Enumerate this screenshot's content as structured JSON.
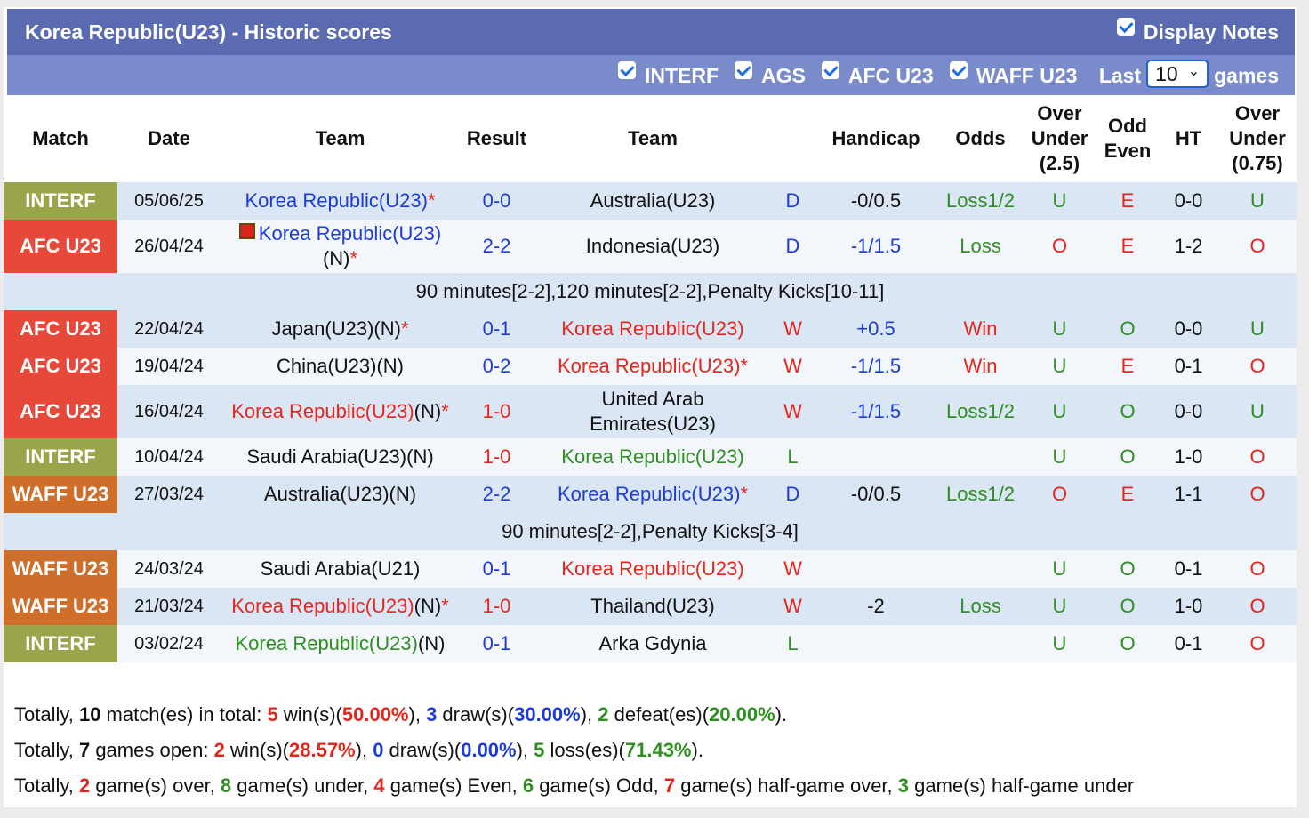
{
  "header": {
    "title": "Korea Republic(U23) - Historic scores",
    "display_notes": "Display Notes",
    "filters": [
      "INTERF",
      "AGS",
      "AFC U23",
      "WAFF U23"
    ],
    "last": "Last",
    "games_select": "10",
    "games": "games"
  },
  "palette": {
    "b": "#1d3bd6",
    "r": "#e5261c",
    "g": "#2f8f22",
    "k": "#111111"
  },
  "match_colors": {
    "INTERF": "#9aa54b",
    "AFC U23": "#e6493a",
    "WAFF U23": "#cd6e2b"
  },
  "columns": [
    [
      "Match"
    ],
    [
      "Date"
    ],
    [
      "Team"
    ],
    [
      "Result"
    ],
    [
      "Team"
    ],
    [
      ""
    ],
    [
      "Handicap"
    ],
    [
      "Odds"
    ],
    [
      "Over",
      "Under",
      "(2.5)"
    ],
    [
      "Odd",
      "Even"
    ],
    [
      "HT"
    ],
    [
      "Over",
      "Under",
      "(0.75)"
    ]
  ],
  "rows": [
    {
      "match": "INTERF",
      "date": "05/06/25",
      "home": [
        {
          "t": "Korea Republic(U23)",
          "c": "b"
        },
        {
          "t": "*",
          "c": "r"
        }
      ],
      "result": {
        "t": "0-0",
        "c": "b"
      },
      "away": [
        {
          "t": "Australia(U23)",
          "c": "k"
        }
      ],
      "wl": {
        "t": "D",
        "c": "b"
      },
      "handicap": {
        "t": "-0/0.5",
        "c": "k"
      },
      "odds": {
        "t": "Loss1/2",
        "c": "g"
      },
      "ou": {
        "t": "U",
        "c": "g"
      },
      "oe": {
        "t": "E",
        "c": "r"
      },
      "ht": {
        "t": "0-0",
        "c": "k"
      },
      "ou2": {
        "t": "U",
        "c": "g"
      }
    },
    {
      "match": "AFC U23",
      "date": "26/04/24",
      "home_icon": true,
      "home": [
        {
          "t": "Korea Republic(U23)",
          "c": "b"
        },
        {
          "t": "(N)",
          "c": "k"
        },
        {
          "t": "*",
          "c": "r"
        }
      ],
      "result": {
        "t": "2-2",
        "c": "b"
      },
      "away": [
        {
          "t": "Indonesia(U23)",
          "c": "k"
        }
      ],
      "wl": {
        "t": "D",
        "c": "b"
      },
      "handicap": {
        "t": "-1/1.5",
        "c": "b"
      },
      "odds": {
        "t": "Loss",
        "c": "g"
      },
      "ou": {
        "t": "O",
        "c": "r"
      },
      "oe": {
        "t": "E",
        "c": "r"
      },
      "ht": {
        "t": "1-2",
        "c": "k"
      },
      "ou2": {
        "t": "O",
        "c": "r"
      },
      "note": "90 minutes[2-2],120 minutes[2-2],Penalty Kicks[10-11]"
    },
    {
      "match": "AFC U23",
      "date": "22/04/24",
      "home": [
        {
          "t": "Japan(U23)(N)",
          "c": "k"
        },
        {
          "t": "*",
          "c": "r"
        }
      ],
      "result": {
        "t": "0-1",
        "c": "b"
      },
      "away": [
        {
          "t": "Korea Republic(U23)",
          "c": "r"
        }
      ],
      "wl": {
        "t": "W",
        "c": "r"
      },
      "handicap": {
        "t": "+0.5",
        "c": "b"
      },
      "odds": {
        "t": "Win",
        "c": "r"
      },
      "ou": {
        "t": "U",
        "c": "g"
      },
      "oe": {
        "t": "O",
        "c": "g"
      },
      "ht": {
        "t": "0-0",
        "c": "k"
      },
      "ou2": {
        "t": "U",
        "c": "g"
      }
    },
    {
      "match": "AFC U23",
      "date": "19/04/24",
      "home": [
        {
          "t": "China(U23)(N)",
          "c": "k"
        }
      ],
      "result": {
        "t": "0-2",
        "c": "b"
      },
      "away": [
        {
          "t": "Korea Republic(U23)",
          "c": "r"
        },
        {
          "t": "*",
          "c": "r"
        }
      ],
      "wl": {
        "t": "W",
        "c": "r"
      },
      "handicap": {
        "t": "-1/1.5",
        "c": "b"
      },
      "odds": {
        "t": "Win",
        "c": "r"
      },
      "ou": {
        "t": "U",
        "c": "g"
      },
      "oe": {
        "t": "E",
        "c": "r"
      },
      "ht": {
        "t": "0-1",
        "c": "k"
      },
      "ou2": {
        "t": "O",
        "c": "r"
      }
    },
    {
      "match": "AFC U23",
      "date": "16/04/24",
      "home": [
        {
          "t": "Korea Republic(U23)",
          "c": "r"
        },
        {
          "t": "(N)",
          "c": "k"
        },
        {
          "t": "*",
          "c": "r"
        }
      ],
      "result": {
        "t": "1-0",
        "c": "r"
      },
      "away": [
        {
          "t": "United Arab Emirates(U23)",
          "c": "k"
        }
      ],
      "wl": {
        "t": "W",
        "c": "r"
      },
      "handicap": {
        "t": "-1/1.5",
        "c": "b"
      },
      "odds": {
        "t": "Loss1/2",
        "c": "g"
      },
      "ou": {
        "t": "U",
        "c": "g"
      },
      "oe": {
        "t": "O",
        "c": "g"
      },
      "ht": {
        "t": "0-0",
        "c": "k"
      },
      "ou2": {
        "t": "U",
        "c": "g"
      }
    },
    {
      "match": "INTERF",
      "date": "10/04/24",
      "home": [
        {
          "t": "Saudi Arabia(U23)(N)",
          "c": "k"
        }
      ],
      "result": {
        "t": "1-0",
        "c": "r"
      },
      "away": [
        {
          "t": "Korea Republic(U23)",
          "c": "g"
        }
      ],
      "wl": {
        "t": "L",
        "c": "g"
      },
      "handicap": null,
      "odds": null,
      "ou": {
        "t": "U",
        "c": "g"
      },
      "oe": {
        "t": "O",
        "c": "g"
      },
      "ht": {
        "t": "1-0",
        "c": "k"
      },
      "ou2": {
        "t": "O",
        "c": "r"
      }
    },
    {
      "match": "WAFF U23",
      "date": "27/03/24",
      "home": [
        {
          "t": "Australia(U23)(N)",
          "c": "k"
        }
      ],
      "result": {
        "t": "2-2",
        "c": "b"
      },
      "away": [
        {
          "t": "Korea Republic(U23)",
          "c": "b"
        },
        {
          "t": "*",
          "c": "r"
        }
      ],
      "wl": {
        "t": "D",
        "c": "b"
      },
      "handicap": {
        "t": "-0/0.5",
        "c": "k"
      },
      "odds": {
        "t": "Loss1/2",
        "c": "g"
      },
      "ou": {
        "t": "O",
        "c": "r"
      },
      "oe": {
        "t": "E",
        "c": "r"
      },
      "ht": {
        "t": "1-1",
        "c": "k"
      },
      "ou2": {
        "t": "O",
        "c": "r"
      },
      "note": "90 minutes[2-2],Penalty Kicks[3-4]"
    },
    {
      "match": "WAFF U23",
      "date": "24/03/24",
      "home": [
        {
          "t": "Saudi Arabia(U21)",
          "c": "k"
        }
      ],
      "result": {
        "t": "0-1",
        "c": "b"
      },
      "away": [
        {
          "t": "Korea Republic(U23)",
          "c": "r"
        }
      ],
      "wl": {
        "t": "W",
        "c": "r"
      },
      "handicap": null,
      "odds": null,
      "ou": {
        "t": "U",
        "c": "g"
      },
      "oe": {
        "t": "O",
        "c": "g"
      },
      "ht": {
        "t": "0-1",
        "c": "k"
      },
      "ou2": {
        "t": "O",
        "c": "r"
      }
    },
    {
      "match": "WAFF U23",
      "date": "21/03/24",
      "home": [
        {
          "t": "Korea Republic(U23)",
          "c": "r"
        },
        {
          "t": "(N)",
          "c": "k"
        },
        {
          "t": "*",
          "c": "r"
        }
      ],
      "result": {
        "t": "1-0",
        "c": "r"
      },
      "away": [
        {
          "t": "Thailand(U23)",
          "c": "k"
        }
      ],
      "wl": {
        "t": "W",
        "c": "r"
      },
      "handicap": {
        "t": "-2",
        "c": "k"
      },
      "odds": {
        "t": "Loss",
        "c": "g"
      },
      "ou": {
        "t": "U",
        "c": "g"
      },
      "oe": {
        "t": "O",
        "c": "g"
      },
      "ht": {
        "t": "1-0",
        "c": "k"
      },
      "ou2": {
        "t": "O",
        "c": "r"
      }
    },
    {
      "match": "INTERF",
      "date": "03/02/24",
      "home": [
        {
          "t": "Korea Republic(U23)",
          "c": "g"
        },
        {
          "t": "(N)",
          "c": "k"
        }
      ],
      "result": {
        "t": "0-1",
        "c": "b"
      },
      "away": [
        {
          "t": "Arka Gdynia",
          "c": "k"
        }
      ],
      "wl": {
        "t": "L",
        "c": "g"
      },
      "handicap": null,
      "odds": null,
      "ou": {
        "t": "U",
        "c": "g"
      },
      "oe": {
        "t": "O",
        "c": "g"
      },
      "ht": {
        "t": "0-1",
        "c": "k"
      },
      "ou2": {
        "t": "O",
        "c": "r"
      }
    }
  ],
  "summary": [
    [
      {
        "t": "Totally, ",
        "c": "n"
      },
      {
        "t": "10",
        "c": "k"
      },
      {
        "t": " match(es) in total: ",
        "c": "n"
      },
      {
        "t": "5",
        "c": "r"
      },
      {
        "t": " win(s)(",
        "c": "n"
      },
      {
        "t": "50.00%",
        "c": "r"
      },
      {
        "t": "), ",
        "c": "n"
      },
      {
        "t": "3",
        "c": "b"
      },
      {
        "t": " draw(s)(",
        "c": "n"
      },
      {
        "t": "30.00%",
        "c": "b"
      },
      {
        "t": "), ",
        "c": "n"
      },
      {
        "t": "2",
        "c": "g"
      },
      {
        "t": " defeat(es)(",
        "c": "n"
      },
      {
        "t": "20.00%",
        "c": "g"
      },
      {
        "t": ").",
        "c": "n"
      }
    ],
    [
      {
        "t": "Totally, ",
        "c": "n"
      },
      {
        "t": "7",
        "c": "k"
      },
      {
        "t": " games open: ",
        "c": "n"
      },
      {
        "t": "2",
        "c": "r"
      },
      {
        "t": " win(s)(",
        "c": "n"
      },
      {
        "t": "28.57%",
        "c": "r"
      },
      {
        "t": "), ",
        "c": "n"
      },
      {
        "t": "0",
        "c": "b"
      },
      {
        "t": " draw(s)(",
        "c": "n"
      },
      {
        "t": "0.00%",
        "c": "b"
      },
      {
        "t": "), ",
        "c": "n"
      },
      {
        "t": "5",
        "c": "g"
      },
      {
        "t": " loss(es)(",
        "c": "n"
      },
      {
        "t": "71.43%",
        "c": "g"
      },
      {
        "t": ").",
        "c": "n"
      }
    ],
    [
      {
        "t": "Totally, ",
        "c": "n"
      },
      {
        "t": "2",
        "c": "r"
      },
      {
        "t": " game(s) over, ",
        "c": "n"
      },
      {
        "t": "8",
        "c": "g"
      },
      {
        "t": " game(s) under, ",
        "c": "n"
      },
      {
        "t": "4",
        "c": "r"
      },
      {
        "t": " game(s) Even, ",
        "c": "n"
      },
      {
        "t": "6",
        "c": "g"
      },
      {
        "t": " game(s) Odd, ",
        "c": "n"
      },
      {
        "t": "7",
        "c": "r"
      },
      {
        "t": " game(s) half-game over, ",
        "c": "n"
      },
      {
        "t": "3",
        "c": "g"
      },
      {
        "t": " game(s) half-game under",
        "c": "n"
      }
    ]
  ]
}
